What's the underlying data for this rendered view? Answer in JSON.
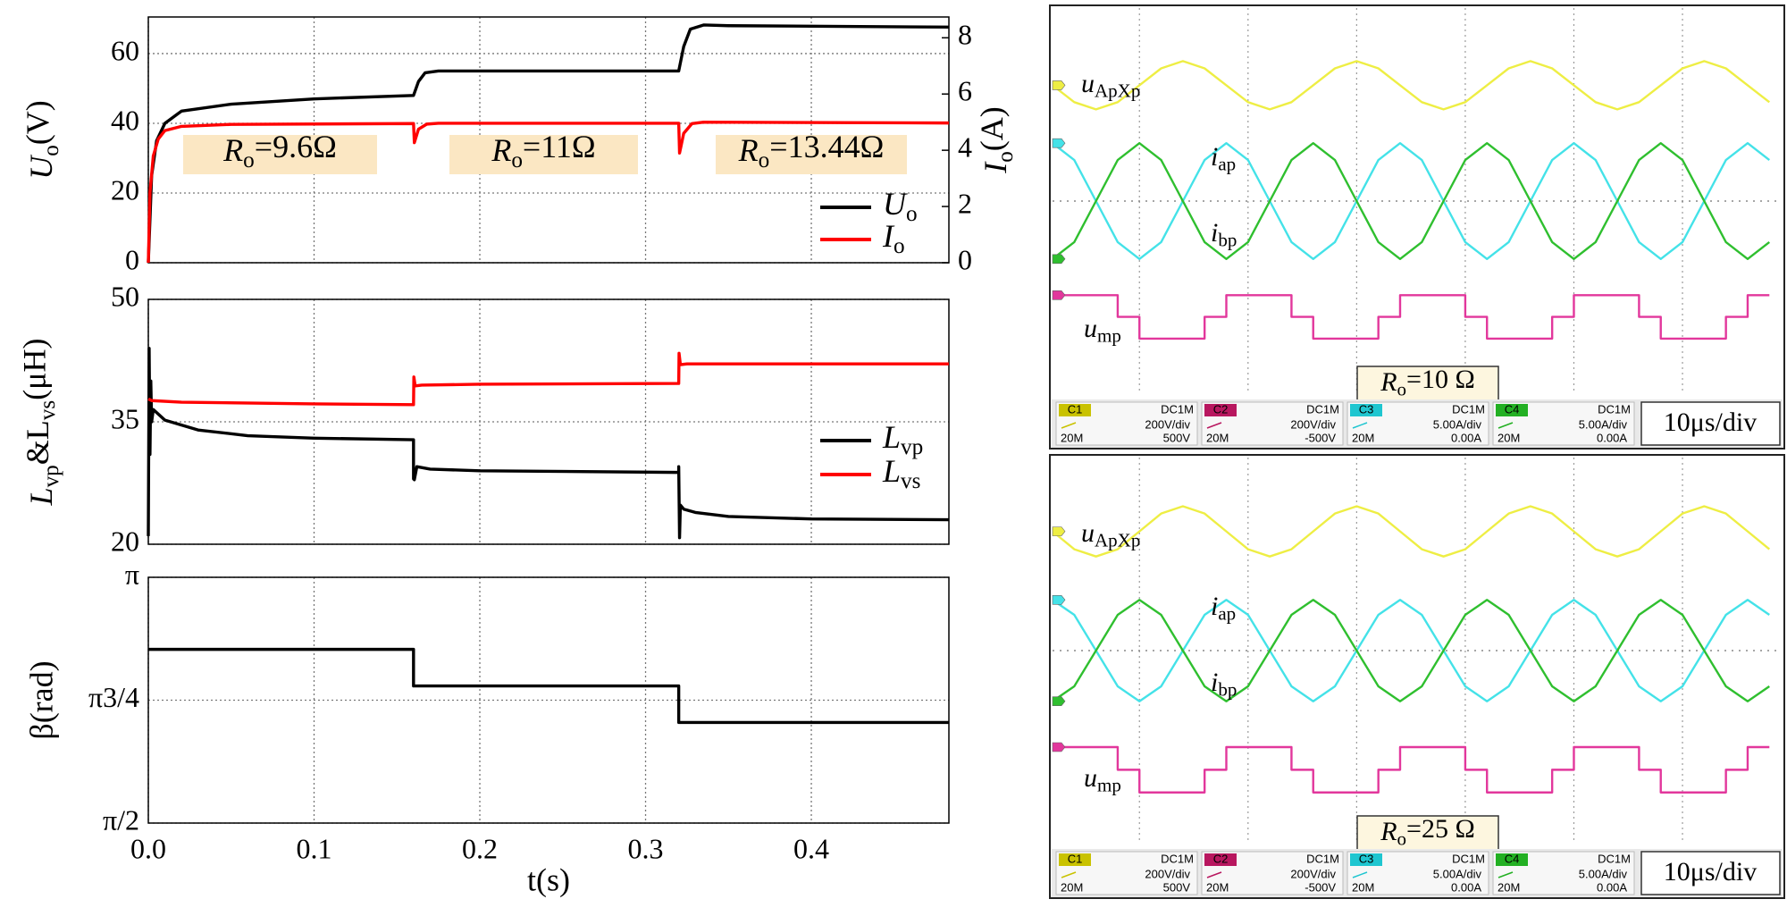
{
  "chart_data": [
    {
      "type": "line",
      "xlim": [
        0,
        0.483
      ],
      "xticks": [
        0,
        0.1,
        0.2,
        0.3,
        0.4
      ],
      "ylim": [
        0,
        70.5
      ],
      "yticks": [
        0,
        20,
        40,
        60
      ],
      "y2lim": [
        0,
        8.74
      ],
      "y2ticks": [
        0,
        2,
        4,
        6,
        8
      ],
      "grid": true,
      "legend": "lower right",
      "ylabel": [
        "U",
        "o",
        "(V)"
      ],
      "y2label": [
        "I",
        "o",
        "(A)"
      ],
      "annotations": [
        [
          "R",
          "o",
          "=9.6Ω"
        ],
        [
          "R",
          "o",
          "=11Ω"
        ],
        [
          "R",
          "o",
          "=13.44Ω"
        ]
      ],
      "annotation_color": "#fbe7c3",
      "series": [
        {
          "name": [
            "U",
            "o"
          ],
          "color": "#000000",
          "x": [
            0,
            0.002,
            0.005,
            0.01,
            0.02,
            0.05,
            0.1,
            0.16,
            0.163,
            0.167,
            0.175,
            0.2,
            0.32,
            0.323,
            0.327,
            0.335,
            0.35,
            0.483
          ],
          "values": [
            0,
            25,
            35,
            40,
            43.5,
            45.5,
            47,
            48,
            52,
            54.5,
            55,
            55,
            55,
            62,
            67,
            68.2,
            68,
            67.6
          ]
        },
        {
          "name": [
            "I",
            "o"
          ],
          "color": "#ff0000",
          "axis": "y2",
          "x": [
            0,
            0.001,
            0.003,
            0.006,
            0.01,
            0.02,
            0.05,
            0.16,
            0.1605,
            0.163,
            0.168,
            0.175,
            0.32,
            0.3205,
            0.323,
            0.328,
            0.335,
            0.483
          ],
          "values": [
            0,
            2.5,
            3.8,
            4.4,
            4.7,
            4.85,
            4.92,
            4.95,
            4.27,
            4.75,
            4.93,
            4.96,
            4.96,
            3.9,
            4.6,
            4.95,
            5.0,
            4.97
          ]
        }
      ]
    },
    {
      "type": "line",
      "xlim": [
        0,
        0.483
      ],
      "xticks": [
        0,
        0.1,
        0.2,
        0.3,
        0.4
      ],
      "ylim": [
        20,
        50
      ],
      "yticks": [
        20,
        35,
        50
      ],
      "grid": true,
      "legend": "right",
      "ylabel": [
        "L",
        "vp",
        "&L",
        "vs",
        "(μH)"
      ],
      "series": [
        {
          "name": [
            "L",
            "vp"
          ],
          "color": "#000000",
          "x": [
            0,
            0.0005,
            0.001,
            0.0015,
            0.002,
            0.003,
            0.01,
            0.03,
            0.06,
            0.1,
            0.16,
            0.16,
            0.1605,
            0.162,
            0.17,
            0.2,
            0.32,
            0.32,
            0.3205,
            0.321,
            0.323,
            0.33,
            0.35,
            0.4,
            0.483
          ],
          "values": [
            21,
            44,
            31,
            40,
            35,
            36.5,
            35.2,
            34,
            33.3,
            33,
            32.8,
            28,
            27.9,
            29.5,
            29.2,
            29,
            28.8,
            29.5,
            20.8,
            24.8,
            24.3,
            23.9,
            23.4,
            23.1,
            23
          ]
        },
        {
          "name": [
            "L",
            "vs"
          ],
          "color": "#ff0000",
          "x": [
            0,
            0.002,
            0.02,
            0.1,
            0.16,
            0.1602,
            0.161,
            0.165,
            0.2,
            0.32,
            0.3202,
            0.321,
            0.325,
            0.35,
            0.483
          ],
          "values": [
            37.8,
            37.6,
            37.4,
            37.2,
            37.1,
            40.5,
            39.4,
            39.5,
            39.6,
            39.7,
            43.4,
            42.0,
            42.1,
            42.1,
            42.1
          ]
        }
      ]
    },
    {
      "type": "line",
      "xlim": [
        0,
        0.483
      ],
      "xticks": [
        {
          "value": 0,
          "label": "0.0"
        },
        0.1,
        0.2,
        0.3,
        0.4
      ],
      "ylim": [
        1.5708,
        3.1416
      ],
      "yticks": [
        {
          "value": 1.5708,
          "label": "π/2"
        },
        {
          "value": 2.3562,
          "label": "π3/4"
        },
        {
          "value": 3.1416,
          "label": "π"
        }
      ],
      "grid": true,
      "ylabel": "β(rad)",
      "xlabel": "t(s)",
      "series": [
        {
          "color": "#000000",
          "x": [
            0,
            0.16,
            0.16,
            0.32,
            0.32,
            0.483
          ],
          "values": [
            2.681,
            2.681,
            2.447,
            2.447,
            2.214,
            2.214
          ]
        }
      ]
    },
    {
      "type": "scope",
      "xlim": [
        0,
        66.8
      ],
      "xticks": [
        8,
        18,
        28,
        38,
        48,
        58
      ],
      "ylim": [
        -4,
        4
      ],
      "yticks": [
        0
      ],
      "grid": true,
      "timebase": "10μs/div",
      "annotation": [
        "R",
        "o",
        "=10 Ω"
      ],
      "channels": [
        {
          "name": "C1",
          "coupling": "DC1M",
          "scale": "200V/div",
          "offset": "500V",
          "bandwidth": "20M",
          "color": "#c9c200"
        },
        {
          "name": "C2",
          "coupling": "DC1M",
          "scale": "200V/div",
          "offset": "-500V",
          "bandwidth": "20M",
          "color": "#b8175f"
        },
        {
          "name": "C3",
          "coupling": "DC1M",
          "scale": "5.00A/div",
          "offset": "0.00A",
          "bandwidth": "20M",
          "color": "#1fc6d0"
        },
        {
          "name": "C4",
          "coupling": "DC1M",
          "scale": "5.00A/div",
          "offset": "0.00A",
          "bandwidth": "20M",
          "color": "#23b023"
        }
      ],
      "x": [
        0,
        2,
        4,
        6,
        8,
        10,
        12,
        14,
        16,
        18,
        20,
        22,
        24,
        26,
        28,
        30,
        32,
        34,
        36,
        38,
        40,
        42,
        44,
        46,
        48,
        50,
        52,
        54,
        56,
        58,
        60,
        62,
        64,
        66
      ],
      "series": [
        {
          "name": [
            "u",
            "ApXp"
          ],
          "color": "#eeee44",
          "values": [
            2.4,
            2.05,
            1.9,
            2.05,
            2.4,
            2.75,
            2.9,
            2.75,
            2.4,
            2.05,
            1.9,
            2.05,
            2.4,
            2.75,
            2.9,
            2.75,
            2.4,
            2.05,
            1.9,
            2.05,
            2.4,
            2.75,
            2.9,
            2.75,
            2.4,
            2.05,
            1.9,
            2.05,
            2.4,
            2.75,
            2.9,
            2.75,
            2.4,
            2.05
          ]
        },
        {
          "name": [
            "i",
            "ap"
          ],
          "color": "#44e2e8",
          "values": [
            1.2,
            0.85,
            0,
            -0.85,
            -1.2,
            -0.85,
            0,
            0.85,
            1.2,
            0.85,
            0,
            -0.85,
            -1.2,
            -0.85,
            0,
            0.85,
            1.2,
            0.85,
            0,
            -0.85,
            -1.2,
            -0.85,
            0,
            0.85,
            1.2,
            0.85,
            0,
            -0.85,
            -1.2,
            -0.85,
            0,
            0.85,
            1.2,
            0.85
          ]
        },
        {
          "name": [
            "i",
            "bp"
          ],
          "color": "#2fbf2f",
          "values": [
            -1.2,
            -0.85,
            0,
            0.85,
            1.2,
            0.85,
            0,
            -0.85,
            -1.2,
            -0.85,
            0,
            0.85,
            1.2,
            0.85,
            0,
            -0.85,
            -1.2,
            -0.85,
            0,
            0.85,
            1.2,
            0.85,
            0,
            -0.85,
            -1.2,
            -0.85,
            0,
            0.85,
            1.2,
            0.85,
            0,
            -0.85,
            -1.2,
            -0.85
          ]
        },
        {
          "name": [
            "u",
            "mp"
          ],
          "color": "#e2379c",
          "step": true,
          "values": [
            -1.95,
            -1.95,
            -1.95,
            -2.4,
            -2.85,
            -2.85,
            -2.85,
            -2.4,
            -1.95,
            -1.95,
            -1.95,
            -2.4,
            -2.85,
            -2.85,
            -2.85,
            -2.4,
            -1.95,
            -1.95,
            -1.95,
            -2.4,
            -2.85,
            -2.85,
            -2.85,
            -2.4,
            -1.95,
            -1.95,
            -1.95,
            -2.4,
            -2.85,
            -2.85,
            -2.85,
            -2.4,
            -1.95,
            -1.95
          ]
        }
      ]
    },
    {
      "type": "scope",
      "xlim": [
        0,
        66.8
      ],
      "xticks": [
        8,
        18,
        28,
        38,
        48,
        58
      ],
      "ylim": [
        -4,
        4
      ],
      "yticks": [
        0
      ],
      "grid": true,
      "timebase": "10μs/div",
      "annotation": [
        "R",
        "o",
        "=25 Ω"
      ],
      "channels": [
        {
          "name": "C1",
          "coupling": "DC1M",
          "scale": "200V/div",
          "offset": "500V",
          "bandwidth": "20M",
          "color": "#c9c200"
        },
        {
          "name": "C2",
          "coupling": "DC1M",
          "scale": "200V/div",
          "offset": "-500V",
          "bandwidth": "20M",
          "color": "#b8175f"
        },
        {
          "name": "C3",
          "coupling": "DC1M",
          "scale": "5.00A/div",
          "offset": "0.00A",
          "bandwidth": "20M",
          "color": "#1fc6d0"
        },
        {
          "name": "C4",
          "coupling": "DC1M",
          "scale": "5.00A/div",
          "offset": "0.00A",
          "bandwidth": "20M",
          "color": "#23b023"
        }
      ],
      "x": [
        0,
        2,
        4,
        6,
        8,
        10,
        12,
        14,
        16,
        18,
        20,
        22,
        24,
        26,
        28,
        30,
        32,
        34,
        36,
        38,
        40,
        42,
        44,
        46,
        48,
        50,
        52,
        54,
        56,
        58,
        60,
        62,
        64,
        66
      ],
      "series": [
        {
          "name": [
            "u",
            "ApXp"
          ],
          "color": "#eeee44",
          "values": [
            2.47,
            2.1,
            1.95,
            2.1,
            2.47,
            2.84,
            2.99,
            2.84,
            2.47,
            2.1,
            1.95,
            2.1,
            2.47,
            2.84,
            2.99,
            2.84,
            2.47,
            2.1,
            1.95,
            2.1,
            2.47,
            2.84,
            2.99,
            2.84,
            2.47,
            2.1,
            1.95,
            2.1,
            2.47,
            2.84,
            2.99,
            2.84,
            2.47,
            2.1
          ]
        },
        {
          "name": [
            "i",
            "ap"
          ],
          "color": "#44e2e8",
          "values": [
            1.05,
            0.74,
            0,
            -0.74,
            -1.05,
            -0.74,
            0,
            0.74,
            1.05,
            0.74,
            0,
            -0.74,
            -1.05,
            -0.74,
            0,
            0.74,
            1.05,
            0.74,
            0,
            -0.74,
            -1.05,
            -0.74,
            0,
            0.74,
            1.05,
            0.74,
            0,
            -0.74,
            -1.05,
            -0.74,
            0,
            0.74,
            1.05,
            0.74
          ]
        },
        {
          "name": [
            "i",
            "bp"
          ],
          "color": "#2fbf2f",
          "values": [
            -1.05,
            -0.74,
            0,
            0.74,
            1.05,
            0.74,
            0,
            -0.74,
            -1.05,
            -0.74,
            0,
            0.74,
            1.05,
            0.74,
            0,
            -0.74,
            -1.05,
            -0.74,
            0,
            0.74,
            1.05,
            0.74,
            0,
            -0.74,
            -1.05,
            -0.74,
            0,
            0.74,
            1.05,
            0.74,
            0,
            -0.74,
            -1.05,
            -0.74
          ]
        },
        {
          "name": [
            "u",
            "mp"
          ],
          "color": "#e2379c",
          "step": true,
          "values": [
            -2.0,
            -2.0,
            -2.0,
            -2.47,
            -2.94,
            -2.94,
            -2.94,
            -2.47,
            -2.0,
            -2.0,
            -2.0,
            -2.47,
            -2.94,
            -2.94,
            -2.94,
            -2.47,
            -2.0,
            -2.0,
            -2.0,
            -2.47,
            -2.94,
            -2.94,
            -2.94,
            -2.47,
            -2.0,
            -2.0,
            -2.0,
            -2.47,
            -2.94,
            -2.94,
            -2.94,
            -2.47,
            -2.0,
            -2.0
          ]
        }
      ]
    }
  ]
}
